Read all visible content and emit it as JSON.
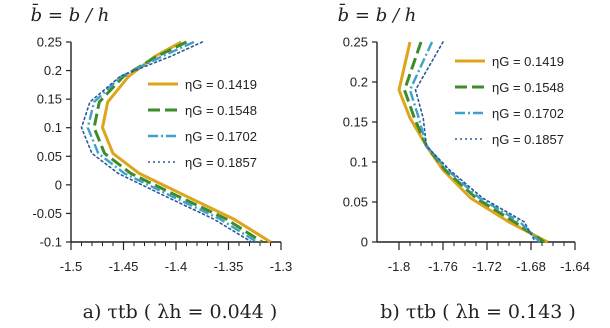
{
  "colors": {
    "series": [
      "#dca51c",
      "#3d8c2a",
      "#3fa1c9",
      "#2a5a9a"
    ],
    "axis": "#222222"
  },
  "chart_data": [
    {
      "type": "line",
      "title": "b̄ = b / h",
      "caption": "a) τtb ( λh = 0.044 )",
      "xlim": [
        -1.5,
        -1.3
      ],
      "ylim": [
        -0.1,
        0.25
      ],
      "xticks": [
        -1.5,
        -1.45,
        -1.4,
        -1.35,
        -1.3
      ],
      "yticks": [
        -0.1,
        -0.05,
        0,
        0.05,
        0.1,
        0.15,
        0.2,
        0.25
      ],
      "xtick_labels": [
        "-1.5",
        "-1.45",
        "-1.4",
        "-1.35",
        "-1.3"
      ],
      "ytick_labels": [
        "-0.1",
        "-0.05",
        "0",
        "0.05",
        "0.1",
        "0.15",
        "0.2",
        "0.25"
      ],
      "legend_position": "right",
      "series": [
        {
          "name": "ηG = 0.1419",
          "x": [
            -1.395,
            -1.42,
            -1.445,
            -1.465,
            -1.47,
            -1.46,
            -1.435,
            -1.39,
            -1.345,
            -1.31
          ],
          "y": [
            0.25,
            0.225,
            0.19,
            0.145,
            0.1,
            0.055,
            0.02,
            -0.02,
            -0.06,
            -0.1
          ]
        },
        {
          "name": "ηG = 0.1548",
          "x": [
            -1.39,
            -1.418,
            -1.45,
            -1.473,
            -1.478,
            -1.468,
            -1.443,
            -1.398,
            -1.352,
            -1.318
          ],
          "y": [
            0.25,
            0.225,
            0.19,
            0.145,
            0.1,
            0.055,
            0.02,
            -0.02,
            -0.06,
            -0.1
          ]
        },
        {
          "name": "ηG = 0.1702",
          "x": [
            -1.383,
            -1.413,
            -1.452,
            -1.478,
            -1.484,
            -1.474,
            -1.449,
            -1.404,
            -1.358,
            -1.323
          ],
          "y": [
            0.25,
            0.225,
            0.19,
            0.145,
            0.1,
            0.055,
            0.02,
            -0.02,
            -0.06,
            -0.1
          ]
        },
        {
          "name": "ηG = 0.1857",
          "x": [
            -1.375,
            -1.405,
            -1.453,
            -1.482,
            -1.49,
            -1.48,
            -1.455,
            -1.41,
            -1.364,
            -1.328
          ],
          "y": [
            0.25,
            0.225,
            0.19,
            0.145,
            0.1,
            0.055,
            0.02,
            -0.02,
            -0.06,
            -0.1
          ]
        }
      ]
    },
    {
      "type": "line",
      "title": "b̄ = b / h",
      "caption": "b) τtb ( λh = 0.143 )",
      "xlim": [
        -1.82,
        -1.64
      ],
      "ylim": [
        0,
        0.25
      ],
      "xticks": [
        -1.8,
        -1.76,
        -1.72,
        -1.68,
        -1.64
      ],
      "yticks": [
        0,
        0.05,
        0.1,
        0.15,
        0.2,
        0.25
      ],
      "xtick_labels": [
        "-1.8",
        "-1.76",
        "-1.72",
        "-1.68",
        "-1.64"
      ],
      "ytick_labels": [
        "0",
        "0.05",
        "0.1",
        "0.15",
        "0.2",
        "0.25"
      ],
      "legend_position": "right",
      "series": [
        {
          "name": "ηG = 0.1419",
          "x": [
            -1.79,
            -1.8,
            -1.79,
            -1.775,
            -1.76,
            -1.735,
            -1.7,
            -1.665
          ],
          "y": [
            0.25,
            0.19,
            0.155,
            0.12,
            0.09,
            0.055,
            0.025,
            0
          ]
        },
        {
          "name": "ηG = 0.1548",
          "x": [
            -1.78,
            -1.795,
            -1.786,
            -1.775,
            -1.758,
            -1.73,
            -1.695,
            -1.668
          ],
          "y": [
            0.25,
            0.19,
            0.155,
            0.12,
            0.09,
            0.055,
            0.025,
            0
          ]
        },
        {
          "name": "ηG = 0.1702",
          "x": [
            -1.77,
            -1.79,
            -1.782,
            -1.775,
            -1.756,
            -1.727,
            -1.69,
            -1.672
          ],
          "y": [
            0.25,
            0.19,
            0.155,
            0.12,
            0.09,
            0.055,
            0.025,
            0
          ]
        },
        {
          "name": "ηG = 0.1857",
          "x": [
            -1.76,
            -1.785,
            -1.778,
            -1.775,
            -1.754,
            -1.724,
            -1.686,
            -1.676
          ],
          "y": [
            0.25,
            0.19,
            0.155,
            0.12,
            0.09,
            0.055,
            0.025,
            0
          ]
        }
      ]
    }
  ]
}
